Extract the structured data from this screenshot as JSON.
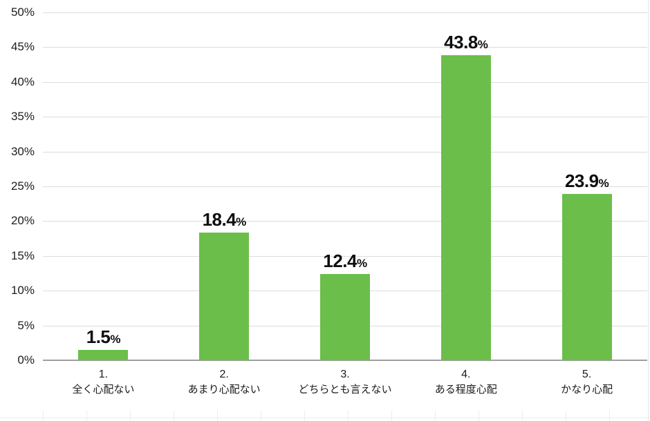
{
  "chart_data": {
    "type": "bar",
    "title": "",
    "xlabel": "",
    "ylabel": "",
    "categories": [
      {
        "number": "1.",
        "label": "全く心配ない"
      },
      {
        "number": "2.",
        "label": "あまり心配ない"
      },
      {
        "number": "3.",
        "label": "どちらとも言えない"
      },
      {
        "number": "4.",
        "label": "ある程度心配"
      },
      {
        "number": "5.",
        "label": "かなり心配"
      }
    ],
    "values": [
      1.5,
      18.4,
      12.4,
      43.8,
      23.9
    ],
    "value_labels": [
      "1.5",
      "18.4",
      "12.4",
      "43.8",
      "23.9"
    ],
    "value_unit": "%",
    "ylim": [
      0,
      50
    ],
    "ytick_step": 5,
    "ytick_labels": [
      "0%",
      "5%",
      "10%",
      "15%",
      "20%",
      "25%",
      "30%",
      "35%",
      "40%",
      "45%",
      "50%"
    ],
    "grid": true,
    "legend": "none",
    "bar_color": "#6cbe4b",
    "gridline_color": "#dcdcdc",
    "axis_color": "#9e9e9e",
    "label_color": "#0e0e0e"
  }
}
